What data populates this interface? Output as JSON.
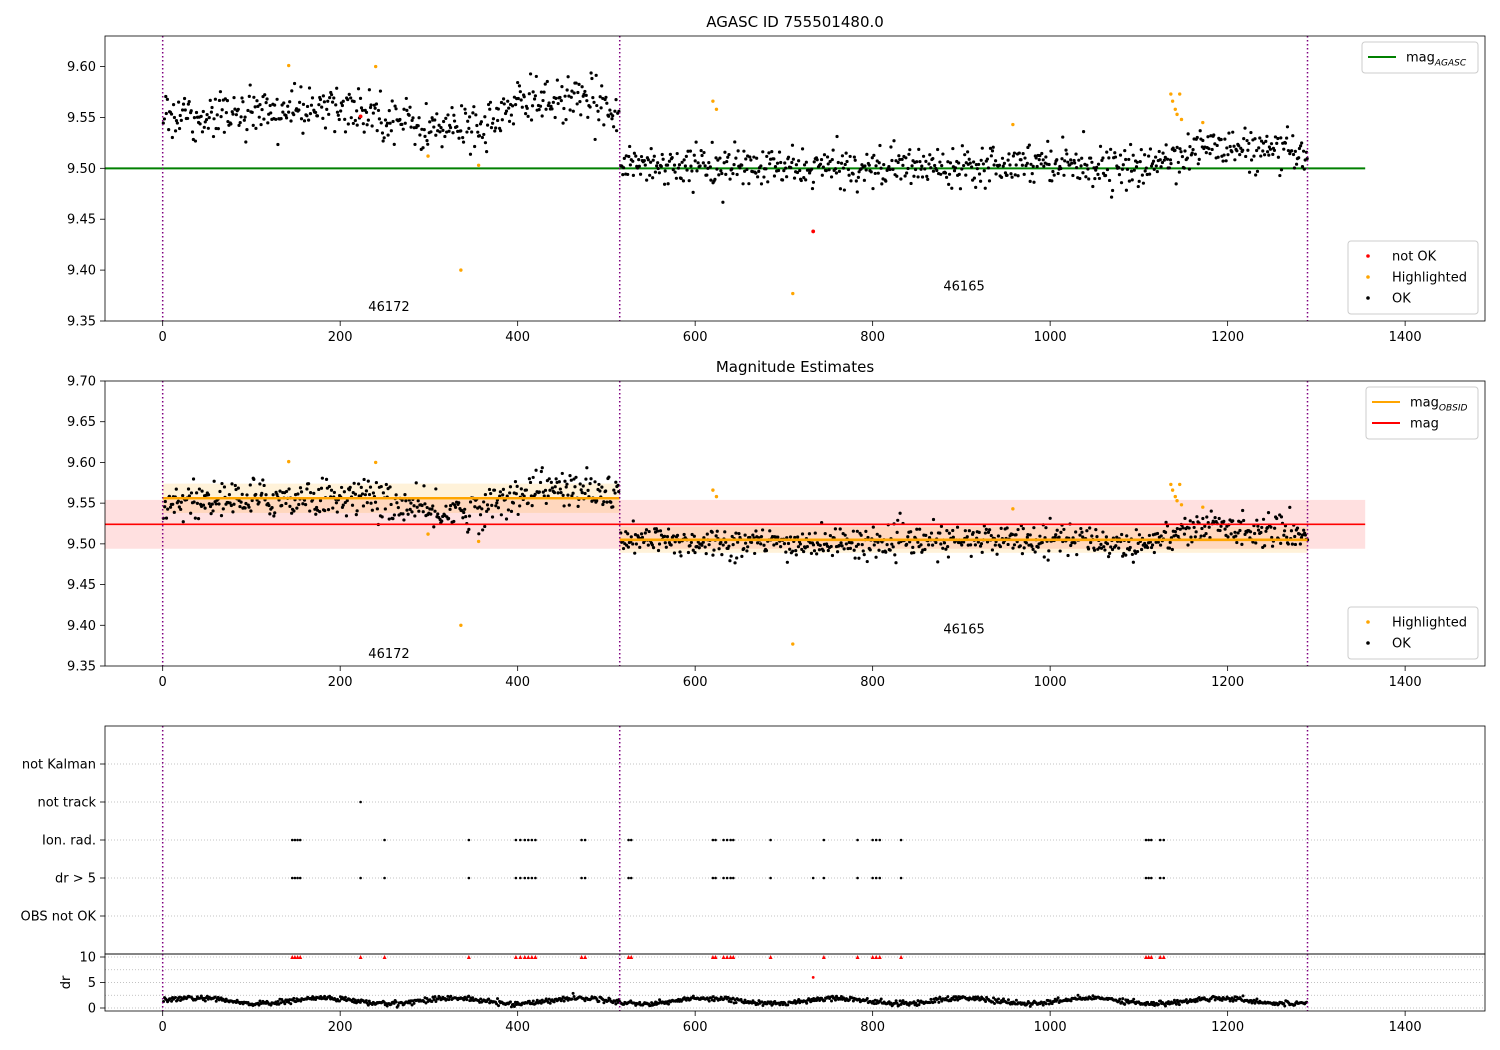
{
  "chart_data": [
    {
      "type": "scatter",
      "title": "AGASC ID 755501480.0",
      "xlim": [
        -65,
        1490
      ],
      "ylim": [
        9.35,
        9.63
      ],
      "xticks": [
        "0",
        "200",
        "400",
        "600",
        "800",
        "1000",
        "1200",
        "1400"
      ],
      "yticks": [
        "9.35",
        "9.40",
        "9.45",
        "9.50",
        "9.55",
        "9.60"
      ],
      "obsid_boundaries": [
        0,
        515,
        1290
      ],
      "obsid_labels": [
        {
          "text": "46172",
          "x": 255,
          "y": 9.36
        },
        {
          "text": "46165",
          "x": 903,
          "y": 9.38
        }
      ],
      "reference_line": {
        "name": "mag",
        "subscript": "AGASC",
        "y": 9.5,
        "x_range": [
          -65,
          1355
        ],
        "color": "#008000"
      },
      "segments": [
        {
          "x_start": 0,
          "x_end": 515,
          "mean": 9.556,
          "sd": 0.016,
          "trend": [
            [
              0,
              9.552
            ],
            [
              130,
              9.556
            ],
            [
              230,
              9.558
            ],
            [
              300,
              9.538
            ],
            [
              360,
              9.542
            ],
            [
              420,
              9.57
            ],
            [
              515,
              9.56
            ]
          ]
        },
        {
          "x_start": 515,
          "x_end": 1290,
          "mean": 9.505,
          "sd": 0.013,
          "trend": [
            [
              515,
              9.505
            ],
            [
              700,
              9.5
            ],
            [
              850,
              9.502
            ],
            [
              1000,
              9.508
            ],
            [
              1100,
              9.498
            ],
            [
              1130,
              9.51
            ],
            [
              1180,
              9.522
            ],
            [
              1290,
              9.512
            ]
          ]
        }
      ],
      "highlighted": [
        [
          142,
          9.601
        ],
        [
          240,
          9.6
        ],
        [
          299,
          9.512
        ],
        [
          336,
          9.4
        ],
        [
          356,
          9.503
        ],
        [
          620,
          9.566
        ],
        [
          624,
          9.558
        ],
        [
          710,
          9.377
        ],
        [
          958,
          9.543
        ],
        [
          1136,
          9.573
        ],
        [
          1138,
          9.566
        ],
        [
          1141,
          9.558
        ],
        [
          1143,
          9.553
        ],
        [
          1146,
          9.573
        ],
        [
          1148,
          9.548
        ],
        [
          1172,
          9.545
        ]
      ],
      "not_ok": [
        [
          223,
          9.551
        ],
        [
          733,
          9.438
        ]
      ],
      "legends": [
        {
          "position": "upper right",
          "entries": [
            {
              "label": "mag",
              "subscript": "AGASC",
              "color": "#008000",
              "kind": "line"
            }
          ]
        },
        {
          "position": "lower right",
          "entries": [
            {
              "label": "not OK",
              "color": "#ff0000",
              "kind": "marker"
            },
            {
              "label": "Highlighted",
              "color": "#ffa500",
              "kind": "marker"
            },
            {
              "label": "OK",
              "color": "#000000",
              "kind": "marker"
            }
          ]
        }
      ]
    },
    {
      "type": "scatter",
      "title": "Magnitude Estimates",
      "xlim": [
        -65,
        1490
      ],
      "ylim": [
        9.35,
        9.7
      ],
      "xticks": [
        "0",
        "200",
        "400",
        "600",
        "800",
        "1000",
        "1200",
        "1400"
      ],
      "yticks": [
        "9.35",
        "9.40",
        "9.45",
        "9.50",
        "9.55",
        "9.60",
        "9.65",
        "9.70"
      ],
      "obsid_boundaries": [
        0,
        515,
        1290
      ],
      "obsid_labels": [
        {
          "text": "46172",
          "x": 255,
          "y": 9.36
        },
        {
          "text": "46165",
          "x": 903,
          "y": 9.39
        }
      ],
      "mag": {
        "name": "mag",
        "value": 9.524,
        "band": [
          9.494,
          9.554
        ],
        "x_range": [
          -65,
          1355
        ],
        "color": "#ff0000"
      },
      "mag_obsid": [
        {
          "x_start": 0,
          "x_end": 515,
          "value": 9.556,
          "band": [
            9.538,
            9.574
          ]
        },
        {
          "x_start": 515,
          "x_end": 1290,
          "value": 9.505,
          "band": [
            9.489,
            9.521
          ]
        }
      ],
      "highlighted": [
        [
          142,
          9.601
        ],
        [
          240,
          9.6
        ],
        [
          299,
          9.512
        ],
        [
          336,
          9.4
        ],
        [
          356,
          9.503
        ],
        [
          620,
          9.566
        ],
        [
          624,
          9.558
        ],
        [
          710,
          9.377
        ],
        [
          958,
          9.543
        ],
        [
          1136,
          9.573
        ],
        [
          1138,
          9.566
        ],
        [
          1141,
          9.558
        ],
        [
          1143,
          9.553
        ],
        [
          1146,
          9.573
        ],
        [
          1148,
          9.548
        ],
        [
          1172,
          9.545
        ]
      ],
      "legends": [
        {
          "position": "upper right",
          "entries": [
            {
              "label": "mag",
              "subscript": "OBSID",
              "color": "#ffa500",
              "kind": "line"
            },
            {
              "label": "mag",
              "color": "#ff0000",
              "kind": "line"
            }
          ]
        },
        {
          "position": "lower right",
          "entries": [
            {
              "label": "Highlighted",
              "color": "#ffa500",
              "kind": "marker"
            },
            {
              "label": "OK",
              "color": "#000000",
              "kind": "marker"
            }
          ]
        }
      ]
    },
    {
      "type": "scatter",
      "title": "",
      "xlim": [
        -65,
        1490
      ],
      "categories": [
        "not Kalman",
        "not track",
        "Ion. rad.",
        "dr > 5",
        "OBS not OK"
      ],
      "obsid_boundaries": [
        0,
        515,
        1290
      ],
      "flags": {
        "not Kalman": [],
        "not track": [
          223
        ],
        "Ion. rad.": [
          146,
          149,
          152,
          155,
          250,
          345,
          398,
          403,
          408,
          412,
          416,
          420,
          472,
          476,
          525,
          528,
          620,
          623,
          632,
          636,
          640,
          643,
          685,
          745,
          783,
          800,
          804,
          808,
          832,
          1108,
          1111,
          1114,
          1124,
          1128
        ],
        "dr > 5": [
          146,
          149,
          152,
          155,
          223,
          250,
          345,
          398,
          403,
          408,
          412,
          416,
          420,
          472,
          476,
          525,
          528,
          620,
          623,
          632,
          636,
          640,
          643,
          685,
          733,
          745,
          783,
          800,
          804,
          808,
          832,
          1108,
          1111,
          1114,
          1124,
          1128
        ],
        "OBS not OK": []
      }
    },
    {
      "type": "scatter",
      "ylabel": "dr",
      "xlim": [
        -65,
        1490
      ],
      "ylim": [
        0,
        10
      ],
      "xticks": [
        "0",
        "200",
        "400",
        "600",
        "800",
        "1000",
        "1200",
        "1400"
      ],
      "yticks": [
        "0",
        "5",
        "10"
      ],
      "obsid_boundaries": [
        0,
        515,
        1290
      ],
      "clipped_at_10": [
        146,
        149,
        152,
        155,
        223,
        250,
        345,
        398,
        403,
        408,
        412,
        416,
        420,
        472,
        476,
        525,
        528,
        620,
        623,
        632,
        636,
        640,
        643,
        685,
        745,
        783,
        800,
        804,
        808,
        832,
        1108,
        1111,
        1114,
        1124,
        1128
      ],
      "outliers": [
        [
          733,
          6.0
        ]
      ],
      "dr_baseline": {
        "mean": 1.4,
        "amplitude": 0.55,
        "noise": 0.25
      }
    }
  ]
}
